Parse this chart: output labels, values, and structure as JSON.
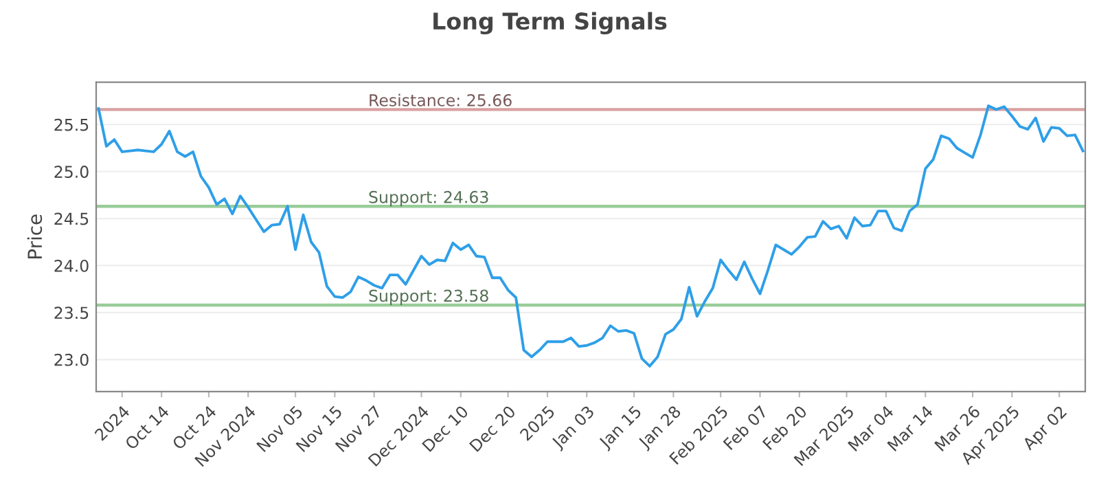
{
  "chart_data": {
    "type": "line",
    "title": "Long Term Signals",
    "ylabel": "Price",
    "categories": [
      null,
      null,
      null,
      "2024",
      null,
      null,
      null,
      null,
      "Oct 14",
      null,
      null,
      null,
      null,
      null,
      "Oct 24",
      null,
      null,
      null,
      null,
      "Nov 2024",
      null,
      null,
      null,
      null,
      null,
      "Nov 05",
      null,
      null,
      null,
      null,
      "Nov 15",
      null,
      null,
      null,
      null,
      "Nov 27",
      null,
      null,
      null,
      null,
      null,
      "Dec 2024",
      null,
      null,
      null,
      null,
      "Dec 10",
      null,
      null,
      null,
      null,
      null,
      "Dec 20",
      null,
      null,
      null,
      null,
      "2025",
      null,
      null,
      null,
      null,
      "Jan 03",
      null,
      null,
      null,
      null,
      null,
      "Jan 15",
      null,
      null,
      null,
      null,
      "Jan 28",
      null,
      null,
      null,
      null,
      null,
      "Feb 2025",
      null,
      null,
      null,
      null,
      "Feb 07",
      null,
      null,
      null,
      null,
      "Feb 20",
      null,
      null,
      null,
      null,
      null,
      "Mar 2025",
      null,
      null,
      null,
      null,
      "Mar 04",
      null,
      null,
      null,
      null,
      "Mar 14",
      null,
      null,
      null,
      null,
      null,
      "Mar 26",
      null,
      null,
      null,
      null,
      "Apr 2025",
      null,
      null,
      null,
      null,
      null,
      "Apr 02",
      null,
      null,
      null
    ],
    "series": [
      {
        "color": "#2e9fe8",
        "values": [
          25.67,
          25.27,
          25.34,
          25.21,
          25.22,
          25.23,
          25.22,
          25.21,
          25.29,
          25.43,
          25.21,
          25.16,
          25.21,
          24.95,
          24.83,
          24.65,
          24.71,
          24.55,
          24.74,
          24.62,
          24.49,
          24.36,
          24.43,
          24.44,
          24.63,
          24.17,
          24.54,
          24.25,
          24.14,
          23.78,
          23.67,
          23.66,
          23.72,
          23.88,
          23.84,
          23.79,
          23.76,
          23.9,
          23.9,
          23.8,
          23.95,
          24.1,
          24.01,
          24.06,
          24.05,
          24.24,
          24.17,
          24.22,
          24.1,
          24.09,
          23.87,
          23.87,
          23.74,
          23.66,
          23.1,
          23.03,
          23.1,
          23.19,
          23.19,
          23.19,
          23.23,
          23.14,
          23.15,
          23.18,
          23.23,
          23.36,
          23.3,
          23.31,
          23.28,
          23.01,
          22.93,
          23.03,
          23.27,
          23.32,
          23.43,
          23.77,
          23.46,
          23.62,
          23.76,
          24.06,
          23.95,
          23.85,
          24.04,
          23.86,
          23.7,
          23.95,
          24.22,
          24.17,
          24.12,
          24.2,
          24.3,
          24.31,
          24.47,
          24.39,
          24.42,
          24.29,
          24.51,
          24.42,
          24.43,
          24.58,
          24.58,
          24.4,
          24.37,
          24.58,
          24.65,
          25.03,
          25.13,
          25.38,
          25.35,
          25.25,
          25.2,
          25.15,
          25.39,
          25.7,
          25.66,
          25.69,
          25.59,
          25.48,
          25.45,
          25.57,
          25.32,
          25.47,
          25.46,
          25.38,
          25.39,
          25.22
        ]
      }
    ],
    "ylim": [
      22.66,
      25.95
    ],
    "yticks": [
      {
        "value": 23,
        "label": "23.0"
      },
      23.5,
      {
        "value": 24,
        "label": "24.0"
      },
      24.5,
      {
        "value": 25,
        "label": "25.0"
      },
      25.5
    ],
    "grid": "y",
    "legend": false,
    "marker": "none",
    "line_style": "solid",
    "ref_lines": [
      {
        "axis": "y",
        "value": 25.66,
        "label": "Resistance: 25.66",
        "color": "#d9a0a0"
      },
      {
        "axis": "y",
        "value": 24.63,
        "label": "Support: 24.63",
        "color": "#98cc98"
      },
      {
        "axis": "y",
        "value": 23.58,
        "label": "Support: 23.58",
        "color": "#98cc98"
      }
    ]
  }
}
